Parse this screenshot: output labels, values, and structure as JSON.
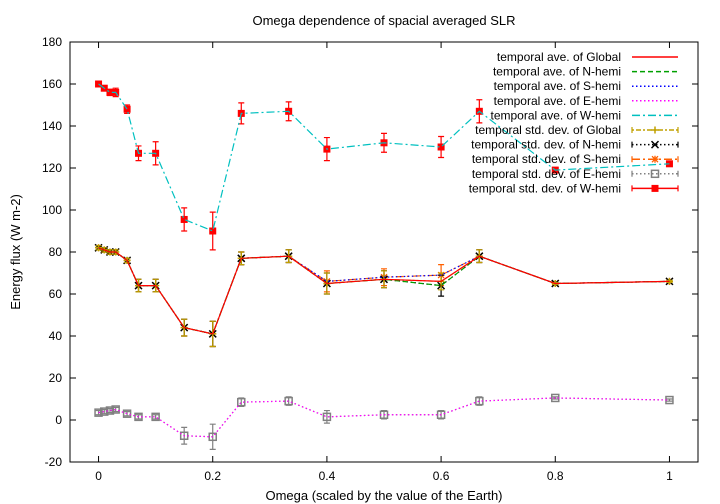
{
  "chart_data": {
    "type": "line",
    "title": "Omega dependence of spacial averaged SLR",
    "xlabel": "Omega (scaled by the value of the Earth)",
    "ylabel": "Energy flux (W m-2)",
    "xlim": [
      -0.05,
      1.05
    ],
    "ylim": [
      -20,
      180
    ],
    "xticks": [
      0,
      0.2,
      0.4,
      0.6,
      0.8,
      1
    ],
    "xtick_labels": [
      "0",
      "0.2",
      "0.4",
      "0.6",
      "0.8",
      "1"
    ],
    "yticks": [
      -20,
      0,
      20,
      40,
      60,
      80,
      100,
      120,
      140,
      160,
      180
    ],
    "ytick_labels": [
      "-20",
      "0",
      "20",
      "40",
      "60",
      "80",
      "100",
      "120",
      "140",
      "160",
      "180"
    ],
    "grid": false,
    "legend_position": "top-right",
    "x": [
      0,
      0.01,
      0.02,
      0.03,
      0.05,
      0.07,
      0.1,
      0.15,
      0.2,
      0.25,
      0.333,
      0.4,
      0.5,
      0.6,
      0.667,
      0.8,
      1
    ],
    "series": [
      {
        "name": "temporal ave. of Global",
        "color": "#ff0000",
        "style": "solid",
        "values": [
          82,
          81,
          80,
          80,
          76,
          64,
          64,
          44,
          41,
          77,
          78,
          65,
          67,
          66,
          78,
          65,
          66
        ]
      },
      {
        "name": "temporal ave. of N-hemi",
        "color": "#00a000",
        "style": "dashed",
        "values": [
          82,
          81,
          80,
          80,
          76,
          64,
          64,
          44,
          41,
          77,
          78,
          65,
          67,
          64,
          78,
          65,
          66
        ]
      },
      {
        "name": "temporal ave. of S-hemi",
        "color": "#0000ff",
        "style": "dotted",
        "values": [
          82,
          81,
          80,
          80,
          76,
          64,
          64,
          44,
          41,
          77,
          78,
          66,
          68,
          69,
          78,
          65,
          66
        ]
      },
      {
        "name": "temporal ave. of E-hemi",
        "color": "#ff00ff",
        "style": "dotted",
        "values": [
          3.5,
          4,
          4.5,
          5,
          3,
          1.5,
          1.5,
          -7.5,
          -8,
          8.5,
          9,
          1.5,
          2.5,
          2.5,
          9,
          10.5,
          9.5
        ]
      },
      {
        "name": "temporal ave. of W-hemi",
        "color": "#00c0c0",
        "style": "dashdot",
        "values": [
          160,
          158,
          156,
          156,
          148,
          127,
          127,
          95.5,
          90,
          146,
          147,
          129,
          132,
          130,
          147,
          119,
          122
        ]
      },
      {
        "name": "temporal std. dev. of Global",
        "color": "#c0a000",
        "style": "dot-dash-errorbar",
        "values": [
          82,
          81,
          80,
          80,
          76,
          64,
          64,
          44,
          41,
          77,
          78,
          65,
          67,
          66,
          78,
          65,
          66
        ],
        "errors": [
          1,
          1,
          1,
          1,
          1,
          3,
          3,
          4,
          6,
          3,
          3,
          5,
          4,
          4,
          3,
          0.5,
          0.5
        ]
      },
      {
        "name": "temporal std. dev. of N-hemi",
        "color": "#000000",
        "style": "dotted-errorbar",
        "values": [
          82,
          81,
          80,
          80,
          76,
          64,
          64,
          44,
          41,
          77,
          78,
          65,
          67,
          64,
          78,
          65,
          66
        ],
        "errors": [
          1,
          1,
          1,
          1,
          1,
          3,
          3,
          4,
          6,
          3,
          3,
          5,
          4,
          5,
          3,
          0.5,
          0.5
        ]
      },
      {
        "name": "temporal std. dev. of S-hemi",
        "color": "#ff6000",
        "style": "dashdot-errorbar",
        "values": [
          82,
          81,
          80,
          80,
          76,
          64,
          64,
          44,
          41,
          77,
          78,
          66,
          68,
          69,
          78,
          65,
          66
        ],
        "errors": [
          1,
          1,
          1,
          1,
          1,
          3,
          3,
          4,
          6,
          3,
          3,
          5,
          4,
          5,
          3,
          0.5,
          0.5
        ]
      },
      {
        "name": "temporal std. dev. of E-hemi",
        "color": "#808080",
        "style": "dotted-errorbar",
        "values": [
          3.5,
          4,
          4.5,
          5,
          3,
          1.5,
          1.5,
          -7.5,
          -8,
          8.5,
          9,
          1.5,
          2.5,
          2.5,
          9,
          10.5,
          9.5
        ],
        "errors": [
          1,
          1,
          1,
          1,
          1,
          1,
          1,
          4,
          6,
          2,
          2,
          3,
          2,
          2,
          2,
          0.5,
          0.5
        ]
      },
      {
        "name": "temporal std. dev. of W-hemi",
        "color": "#ff0000",
        "style": "errorbar",
        "values": [
          160,
          158,
          156,
          156,
          148,
          127,
          127,
          95.5,
          90,
          146,
          147,
          129,
          132,
          130,
          147,
          119,
          122
        ],
        "errors": [
          1,
          1,
          1.5,
          2,
          2,
          3.5,
          5.5,
          5.5,
          9,
          5,
          4.5,
          5.5,
          4.5,
          5,
          5.5,
          1,
          1
        ]
      }
    ]
  }
}
